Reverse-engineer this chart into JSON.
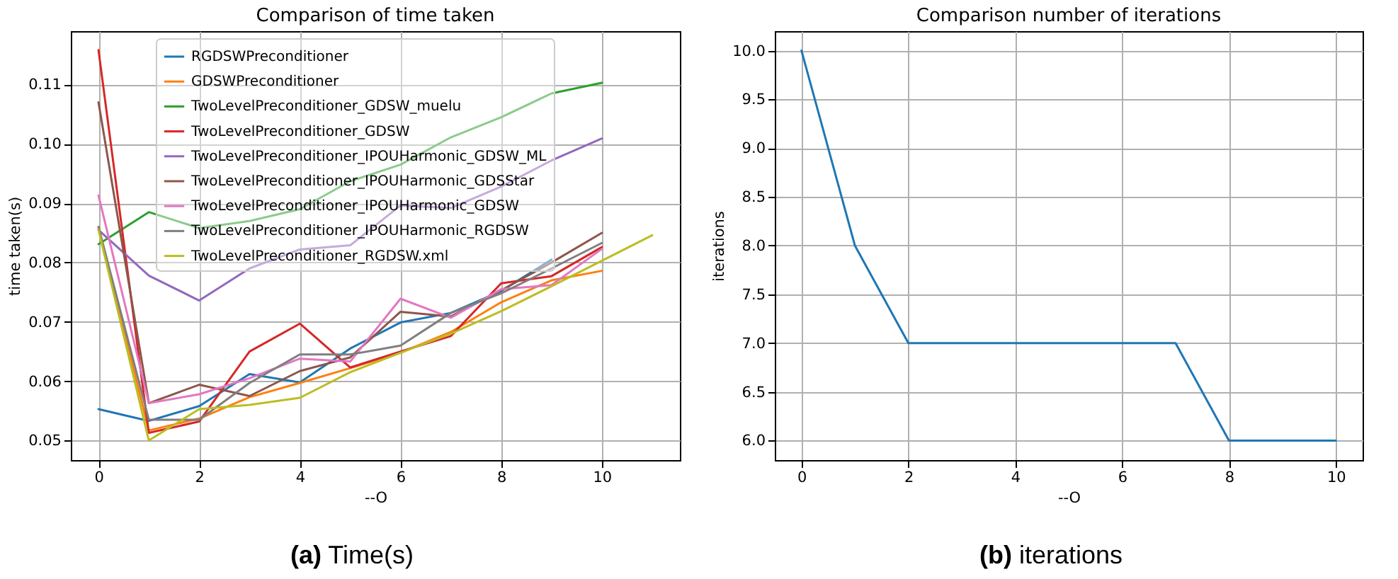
{
  "chart_data": [
    {
      "type": "line",
      "title": "Comparison of time taken",
      "xlabel": "--O",
      "ylabel": "time taken(s)",
      "annotations": [
        "(a) Time(s)"
      ],
      "x": [
        0,
        1,
        2,
        3,
        4,
        5,
        6,
        7,
        8,
        9,
        10
      ],
      "xlim": [
        -0.55,
        11.55
      ],
      "xticks": [
        0,
        2,
        4,
        6,
        8,
        10
      ],
      "ylim": [
        0.0467,
        0.119
      ],
      "yticks": [
        0.05,
        0.06,
        0.07,
        0.08,
        0.09,
        {
          "value": 0.1,
          "label": "0.10"
        },
        0.11
      ],
      "grid": true,
      "legend": "top right",
      "series": [
        {
          "name": "RGDSWPreconditioner",
          "color": "#1f77b4",
          "x": [
            0,
            1,
            2,
            3,
            4,
            5,
            6,
            7,
            8,
            9
          ],
          "values": [
            0.0553,
            0.0533,
            0.0558,
            0.0612,
            0.0598,
            0.0655,
            0.0699,
            0.0715,
            0.0752,
            0.0805
          ]
        },
        {
          "name": "GDSWPreconditioner",
          "color": "#ff7f0e",
          "values": [
            0.086,
            0.0517,
            0.0537,
            0.0573,
            0.0597,
            0.0622,
            0.0648,
            0.0683,
            0.0733,
            0.077,
            0.0786
          ]
        },
        {
          "name": "TwoLevelPreconditioner_GDSW_muelu",
          "color": "#2ca02c",
          "values": [
            0.0831,
            0.0885,
            0.0858,
            0.087,
            0.089,
            0.0937,
            0.0965,
            0.1011,
            0.1045,
            0.1085,
            0.1103
          ]
        },
        {
          "name": "TwoLevelPreconditioner_GDSW",
          "color": "#d62728",
          "values": [
            0.1158,
            0.0513,
            0.0532,
            0.065,
            0.0697,
            0.0623,
            0.065,
            0.0676,
            0.0765,
            0.0777,
            0.0826
          ]
        },
        {
          "name": "TwoLevelPreconditioner_IPOUHarmonic_GDSW_ML",
          "color": "#9467bd",
          "values": [
            0.0855,
            0.0778,
            0.0736,
            0.079,
            0.0822,
            0.0829,
            0.0896,
            0.0892,
            0.0928,
            0.0972,
            0.1009
          ]
        },
        {
          "name": "TwoLevelPreconditioner_IPOUHarmonic_GDSStar",
          "color": "#8c564b",
          "values": [
            0.107,
            0.0563,
            0.0594,
            0.0575,
            0.0617,
            0.064,
            0.0717,
            0.0709,
            0.0753,
            0.08,
            0.085
          ]
        },
        {
          "name": "TwoLevelPreconditioner_IPOUHarmonic_GDSW",
          "color": "#e377c2",
          "values": [
            0.0913,
            0.0563,
            0.0578,
            0.0605,
            0.0638,
            0.0633,
            0.0739,
            0.0707,
            0.0755,
            0.0762,
            0.0823
          ]
        },
        {
          "name": "TwoLevelPreconditioner_IPOUHarmonic_RGDSW",
          "color": "#7f7f7f",
          "values": [
            0.086,
            0.0535,
            0.0535,
            0.0597,
            0.0645,
            0.0645,
            0.066,
            0.0715,
            0.0748,
            0.079,
            0.0833
          ]
        },
        {
          "name": "TwoLevelPreconditioner_RGDSW.xml",
          "color": "#bcbd22",
          "x": [
            0,
            1,
            2,
            3,
            4,
            5,
            6,
            7,
            8,
            9,
            10,
            11
          ],
          "values": [
            0.0855,
            0.05,
            0.0553,
            0.056,
            0.0572,
            0.0615,
            0.0648,
            0.068,
            0.0718,
            0.076,
            0.0803,
            0.0846
          ]
        }
      ]
    },
    {
      "type": "line",
      "title": "Comparison number of iterations",
      "xlabel": "--O",
      "ylabel": "iterations",
      "annotations": [
        "(b) iterations"
      ],
      "x": [
        0,
        1,
        2,
        3,
        4,
        5,
        6,
        7,
        8,
        9,
        10
      ],
      "xlim": [
        -0.5,
        10.5
      ],
      "xticks": [
        0,
        2,
        4,
        6,
        8,
        10
      ],
      "ylim": [
        5.8,
        10.2
      ],
      "yticks": [
        {
          "value": 6,
          "label": "6.0"
        },
        6.5,
        {
          "value": 7,
          "label": "7.0"
        },
        7.5,
        {
          "value": 8,
          "label": "8.0"
        },
        8.5,
        {
          "value": 9,
          "label": "9.0"
        },
        9.5,
        {
          "value": 10,
          "label": "10.0"
        }
      ],
      "grid": true,
      "series": [
        {
          "color": "#1f77b4",
          "values": [
            10,
            8,
            7,
            7,
            7,
            7,
            7,
            7,
            6,
            6,
            6
          ]
        }
      ]
    }
  ]
}
